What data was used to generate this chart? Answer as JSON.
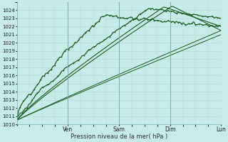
{
  "bg_color": "#c8eaea",
  "grid_color": "#b0d8d8",
  "line_color": "#1a5c1a",
  "ylim": [
    1010,
    1025
  ],
  "yticks": [
    1010,
    1011,
    1012,
    1013,
    1014,
    1015,
    1016,
    1017,
    1018,
    1019,
    1020,
    1021,
    1022,
    1023,
    1024
  ],
  "xtick_pos": [
    0.0,
    0.25,
    0.5,
    0.75,
    1.0
  ],
  "xtick_labels": [
    "",
    "Ven",
    "Sam",
    "Dim",
    "Lun"
  ],
  "xlabel": "Pression niveau de la mer( hPa )",
  "day_vlines": [
    0.25,
    0.5,
    0.75
  ],
  "n_points": 120
}
